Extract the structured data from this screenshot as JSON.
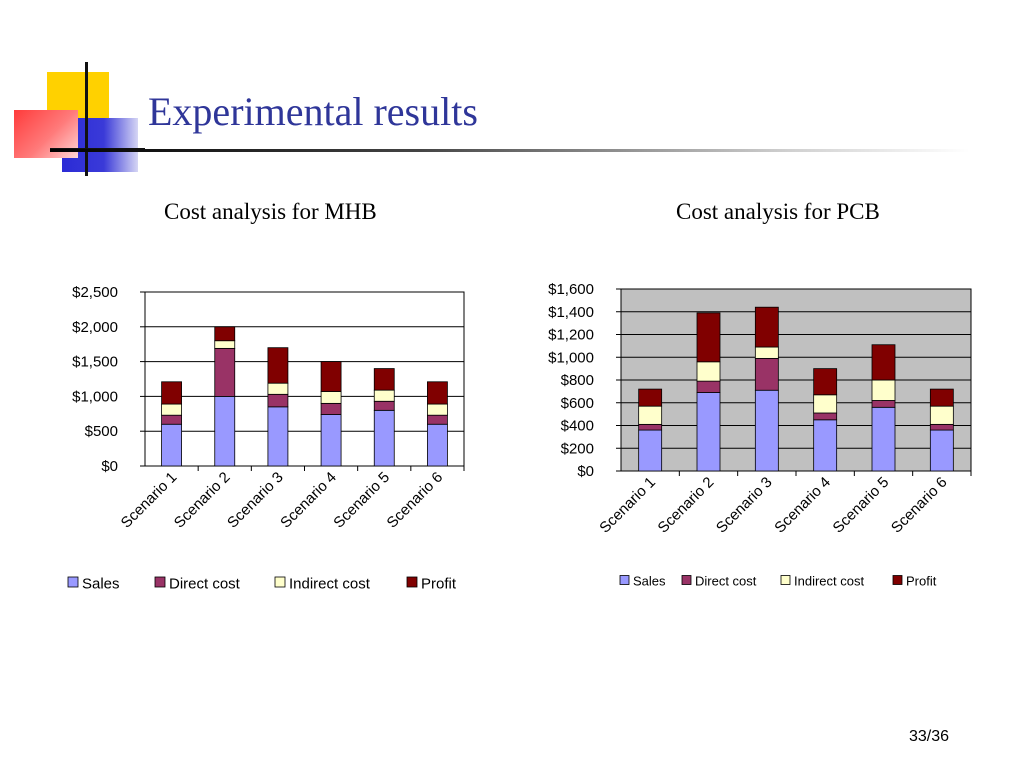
{
  "slide": {
    "title": "Experimental results",
    "page_number": "33/36"
  },
  "colors": {
    "title": "#2f3699",
    "Sales": "#9999ff",
    "Direct cost": "#993366",
    "Indirect cost": "#ffffcc",
    "Profit": "#800000",
    "pcb_plot_background": "#c0c0c0"
  },
  "chart_data": [
    {
      "id": "mhb",
      "type": "bar",
      "stacked": true,
      "title": "Cost analysis for MHB",
      "categories": [
        "Scenario 1",
        "Scenario 2",
        "Scenario 3",
        "Scenario 4",
        "Scenario 5",
        "Scenario 6"
      ],
      "series": [
        {
          "name": "Sales",
          "values": [
            600,
            1000,
            850,
            740,
            800,
            600
          ]
        },
        {
          "name": "Direct cost",
          "values": [
            130,
            690,
            180,
            160,
            130,
            130
          ]
        },
        {
          "name": "Indirect cost",
          "values": [
            160,
            110,
            160,
            170,
            160,
            160
          ]
        },
        {
          "name": "Profit",
          "values": [
            320,
            200,
            510,
            430,
            310,
            320
          ]
        }
      ],
      "yticks": [
        "$0",
        "$500",
        "$1,000",
        "$1,500",
        "$2,000",
        "$2,500"
      ],
      "ylim": [
        0,
        2500
      ],
      "grid": true,
      "legend": "bottom",
      "plot_background": "white"
    },
    {
      "id": "pcb",
      "type": "bar",
      "stacked": true,
      "title": "Cost analysis for PCB",
      "categories": [
        "Scenario 1",
        "Scenario 2",
        "Scenario 3",
        "Scenario 4",
        "Scenario 5",
        "Scenario 6"
      ],
      "series": [
        {
          "name": "Sales",
          "values": [
            360,
            690,
            710,
            450,
            560,
            360
          ]
        },
        {
          "name": "Direct cost",
          "values": [
            50,
            100,
            280,
            60,
            60,
            50
          ]
        },
        {
          "name": "Indirect cost",
          "values": [
            160,
            170,
            100,
            160,
            180,
            160
          ]
        },
        {
          "name": "Profit",
          "values": [
            150,
            430,
            350,
            230,
            310,
            150
          ]
        }
      ],
      "yticks": [
        "$0",
        "$200",
        "$400",
        "$600",
        "$800",
        "$1,000",
        "$1,200",
        "$1,400",
        "$1,600"
      ],
      "ylim": [
        0,
        1600
      ],
      "grid": true,
      "legend": "bottom",
      "plot_background": "gray"
    }
  ]
}
